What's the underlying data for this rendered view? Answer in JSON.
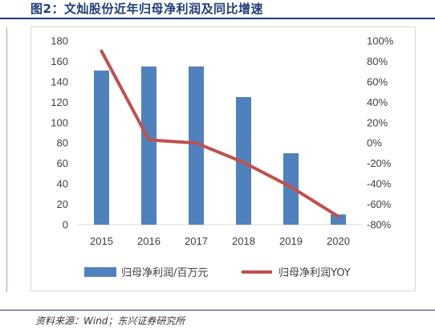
{
  "page": {
    "title": "图2：文灿股份近年归母净利润及同比增速",
    "source": "资料来源：Wind；东兴证券研究所"
  },
  "chart_data": {
    "type": "bar",
    "categories": [
      "2015",
      "2016",
      "2017",
      "2018",
      "2019",
      "2020"
    ],
    "series": [
      {
        "name": "归母净利润/百万元",
        "kind": "bar",
        "axis": "left",
        "color": "#4f81bd",
        "values": [
          151,
          155,
          155,
          125,
          70,
          10
        ]
      },
      {
        "name": "归母净利润YOY",
        "kind": "line",
        "axis": "right",
        "color": "#c0504d",
        "values": [
          90,
          3,
          0,
          -19,
          -43,
          -72
        ]
      }
    ],
    "y_left": {
      "min": 0,
      "max": 180,
      "step": 20,
      "tick_labels": [
        "0",
        "20",
        "40",
        "60",
        "80",
        "100",
        "120",
        "140",
        "160",
        "180"
      ]
    },
    "y_right": {
      "min": -80,
      "max": 100,
      "step": 20,
      "tick_labels": [
        "-80%",
        "-60%",
        "-40%",
        "-20%",
        "0%",
        "20%",
        "40%",
        "60%",
        "80%",
        "100%"
      ]
    },
    "grid": false,
    "legend_position": "bottom"
  }
}
